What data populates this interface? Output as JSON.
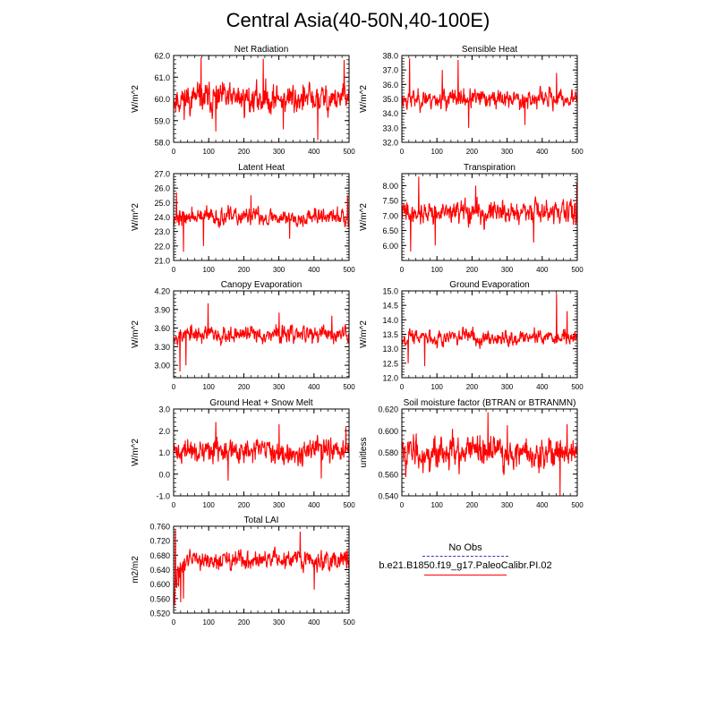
{
  "page": {
    "title": "Central Asia(40-50N,40-100E)"
  },
  "legend": {
    "entries": [
      {
        "label": "No Obs",
        "color": "#3333cc",
        "dash": true
      },
      {
        "label": "b.e21.B1850.f19_g17.PaleoCalibr.PI.02",
        "color": "#ff0000",
        "dash": false
      }
    ]
  },
  "chart_data": [
    {
      "type": "line",
      "title": "Net Radiation",
      "ylabel": "W/m^2",
      "xlim": [
        0,
        500
      ],
      "xticks": [
        "0",
        "100",
        "200",
        "300",
        "400",
        "500"
      ],
      "xtick_values": [
        0,
        100,
        200,
        300,
        400,
        500
      ],
      "ylim": [
        58.0,
        62.0
      ],
      "yticks": [
        "58.0",
        "59.0",
        "60.0",
        "61.0",
        "62.0"
      ],
      "ytick_values": [
        58,
        59,
        60,
        61,
        62
      ],
      "series": [
        {
          "name": "b.e21.B1850.f19_g17.PaleoCalibr.PI.02",
          "color": "#ff0000",
          "x_range": [
            0,
            500
          ],
          "n_points": 500,
          "mean": 60.0,
          "amplitude": 0.65,
          "seed": 11,
          "spikes": [
            [
              78,
              61.9
            ],
            [
              120,
              58.5
            ],
            [
              255,
              61.85
            ],
            [
              312,
              58.6
            ],
            [
              410,
              58.1
            ],
            [
              485,
              61.8
            ]
          ]
        }
      ]
    },
    {
      "type": "line",
      "title": "Sensible Heat",
      "ylabel": "W/m^2",
      "xlim": [
        0,
        500
      ],
      "xticks": [
        "0",
        "100",
        "200",
        "300",
        "400",
        "500"
      ],
      "xtick_values": [
        0,
        100,
        200,
        300,
        400,
        500
      ],
      "ylim": [
        32.0,
        38.0
      ],
      "yticks": [
        "32.0",
        "33.0",
        "34.0",
        "35.0",
        "36.0",
        "37.0",
        "38.0"
      ],
      "ytick_values": [
        32,
        33,
        34,
        35,
        36,
        37,
        38
      ],
      "series": [
        {
          "name": "b.e21.B1850.f19_g17.PaleoCalibr.PI.02",
          "color": "#ff0000",
          "x_range": [
            0,
            500
          ],
          "n_points": 500,
          "mean": 35.0,
          "amplitude": 0.6,
          "seed": 23,
          "spikes": [
            [
              22,
              37.8
            ],
            [
              115,
              37.0
            ],
            [
              160,
              37.7
            ],
            [
              190,
              33.0
            ],
            [
              350,
              33.2
            ],
            [
              440,
              36.8
            ]
          ]
        }
      ]
    },
    {
      "type": "line",
      "title": "Latent Heat",
      "ylabel": "W/m^2",
      "xlim": [
        0,
        500
      ],
      "xticks": [
        "0",
        "100",
        "200",
        "300",
        "400",
        "500"
      ],
      "xtick_values": [
        0,
        100,
        200,
        300,
        400,
        500
      ],
      "ylim": [
        21.0,
        27.0
      ],
      "yticks": [
        "21.0",
        "22.0",
        "23.0",
        "24.0",
        "25.0",
        "26.0",
        "27.0"
      ],
      "ytick_values": [
        21,
        22,
        23,
        24,
        25,
        26,
        27
      ],
      "series": [
        {
          "name": "b.e21.B1850.f19_g17.PaleoCalibr.PI.02",
          "color": "#ff0000",
          "x_range": [
            0,
            500
          ],
          "n_points": 500,
          "mean": 24.0,
          "amplitude": 0.55,
          "seed": 37,
          "spikes": [
            [
              8,
              25.7
            ],
            [
              28,
              21.6
            ],
            [
              85,
              22.0
            ],
            [
              220,
              25.5
            ],
            [
              330,
              22.5
            ],
            [
              495,
              25.5
            ]
          ]
        }
      ]
    },
    {
      "type": "line",
      "title": "Transpiration",
      "ylabel": "W/m^2",
      "xlim": [
        0,
        500
      ],
      "xticks": [
        "0",
        "100",
        "200",
        "300",
        "400",
        "500"
      ],
      "xtick_values": [
        0,
        100,
        200,
        300,
        400,
        500
      ],
      "ylim": [
        5.5,
        8.4
      ],
      "yticks": [
        "6.00",
        "6.50",
        "7.00",
        "7.50",
        "8.00"
      ],
      "ytick_values": [
        6.0,
        6.5,
        7.0,
        7.5,
        8.0
      ],
      "series": [
        {
          "name": "b.e21.B1850.f19_g17.PaleoCalibr.PI.02",
          "color": "#ff0000",
          "x_range": [
            0,
            500
          ],
          "n_points": 500,
          "mean": 7.1,
          "amplitude": 0.35,
          "seed": 41,
          "spikes": [
            [
              25,
              5.8
            ],
            [
              48,
              8.3
            ],
            [
              95,
              6.0
            ],
            [
              210,
              8.0
            ],
            [
              375,
              6.1
            ],
            [
              498,
              8.1
            ]
          ]
        }
      ]
    },
    {
      "type": "line",
      "title": "Canopy Evaporation",
      "ylabel": "W/m^2",
      "xlim": [
        0,
        500
      ],
      "xticks": [
        "0",
        "100",
        "200",
        "300",
        "400",
        "500"
      ],
      "xtick_values": [
        0,
        100,
        200,
        300,
        400,
        500
      ],
      "ylim": [
        2.8,
        4.2
      ],
      "yticks": [
        "3.00",
        "3.30",
        "3.60",
        "3.90",
        "4.20"
      ],
      "ytick_values": [
        3.0,
        3.3,
        3.6,
        3.9,
        4.2
      ],
      "series": [
        {
          "name": "b.e21.B1850.f19_g17.PaleoCalibr.PI.02",
          "color": "#ff0000",
          "x_range": [
            0,
            500
          ],
          "n_points": 500,
          "mean": 3.5,
          "amplitude": 0.13,
          "seed": 53,
          "spikes": [
            [
              18,
              2.9
            ],
            [
              35,
              3.0
            ],
            [
              98,
              4.0
            ],
            [
              300,
              3.85
            ],
            [
              450,
              3.8
            ]
          ]
        }
      ]
    },
    {
      "type": "line",
      "title": "Ground Evaporation",
      "ylabel": "W/m^2",
      "xlim": [
        0,
        500
      ],
      "xticks": [
        "0",
        "100",
        "200",
        "300",
        "400",
        "500"
      ],
      "xtick_values": [
        0,
        100,
        200,
        300,
        400,
        500
      ],
      "ylim": [
        12.0,
        15.0
      ],
      "yticks": [
        "12.0",
        "12.5",
        "13.0",
        "13.5",
        "14.0",
        "14.5",
        "15.0"
      ],
      "ytick_values": [
        12.0,
        12.5,
        13.0,
        13.5,
        14.0,
        14.5,
        15.0
      ],
      "series": [
        {
          "name": "b.e21.B1850.f19_g17.PaleoCalibr.PI.02",
          "color": "#ff0000",
          "x_range": [
            0,
            500
          ],
          "n_points": 500,
          "mean": 13.4,
          "amplitude": 0.25,
          "seed": 67,
          "spikes": [
            [
              18,
              12.5
            ],
            [
              65,
              12.4
            ],
            [
              440,
              14.9
            ],
            [
              470,
              14.3
            ]
          ]
        }
      ]
    },
    {
      "type": "line",
      "title": "Ground Heat + Snow Melt",
      "ylabel": "W/m^2",
      "xlim": [
        0,
        500
      ],
      "xticks": [
        "0",
        "100",
        "200",
        "300",
        "400",
        "500"
      ],
      "xtick_values": [
        0,
        100,
        200,
        300,
        400,
        500
      ],
      "ylim": [
        -1.0,
        3.0
      ],
      "yticks": [
        "-1.0",
        "0.0",
        "1.0",
        "2.0",
        "3.0"
      ],
      "ytick_values": [
        -1,
        0,
        1,
        2,
        3
      ],
      "series": [
        {
          "name": "b.e21.B1850.f19_g17.PaleoCalibr.PI.02",
          "color": "#ff0000",
          "x_range": [
            0,
            500
          ],
          "n_points": 500,
          "mean": 1.05,
          "amplitude": 0.5,
          "seed": 71,
          "spikes": [
            [
              120,
              2.4
            ],
            [
              155,
              -0.3
            ],
            [
              300,
              2.3
            ],
            [
              420,
              -0.2
            ],
            [
              490,
              2.2
            ]
          ]
        }
      ]
    },
    {
      "type": "line",
      "title": "Soil moisture factor (BTRAN or BTRANMN)",
      "ylabel": "unitless",
      "xlim": [
        0,
        500
      ],
      "xticks": [
        "0",
        "100",
        "200",
        "300",
        "400",
        "500"
      ],
      "xtick_values": [
        0,
        100,
        200,
        300,
        400,
        500
      ],
      "ylim": [
        0.54,
        0.62
      ],
      "yticks": [
        "0.540",
        "0.560",
        "0.580",
        "0.600",
        "0.620"
      ],
      "ytick_values": [
        0.54,
        0.56,
        0.58,
        0.6,
        0.62
      ],
      "series": [
        {
          "name": "b.e21.B1850.f19_g17.PaleoCalibr.PI.02",
          "color": "#ff0000",
          "x_range": [
            0,
            500
          ],
          "n_points": 500,
          "mean": 0.58,
          "amplitude": 0.014,
          "seed": 83,
          "spikes": [
            [
              245,
              0.617
            ],
            [
              300,
              0.605
            ],
            [
              450,
              0.54
            ],
            [
              470,
              0.606
            ]
          ]
        }
      ]
    },
    {
      "type": "line",
      "title": "Total LAI",
      "ylabel": "m2/m2",
      "xlim": [
        0,
        500
      ],
      "xticks": [
        "0",
        "100",
        "200",
        "300",
        "400",
        "500"
      ],
      "xtick_values": [
        0,
        100,
        200,
        300,
        400,
        500
      ],
      "ylim": [
        0.52,
        0.76
      ],
      "yticks": [
        "0.520",
        "0.560",
        "0.600",
        "0.640",
        "0.680",
        "0.720",
        "0.760"
      ],
      "ytick_values": [
        0.52,
        0.56,
        0.6,
        0.64,
        0.68,
        0.72,
        0.76
      ],
      "series": [
        {
          "name": "b.e21.B1850.f19_g17.PaleoCalibr.PI.02",
          "color": "#ff0000",
          "x_range": [
            0,
            500
          ],
          "n_points": 500,
          "mean": 0.665,
          "amplitude": 0.025,
          "seed": 97,
          "drift_start": [
            0,
            0.6
          ],
          "spikes": [
            [
              5,
              0.75
            ],
            [
              20,
              0.55
            ],
            [
              28,
              0.56
            ],
            [
              360,
              0.745
            ],
            [
              400,
              0.585
            ]
          ]
        }
      ]
    }
  ]
}
